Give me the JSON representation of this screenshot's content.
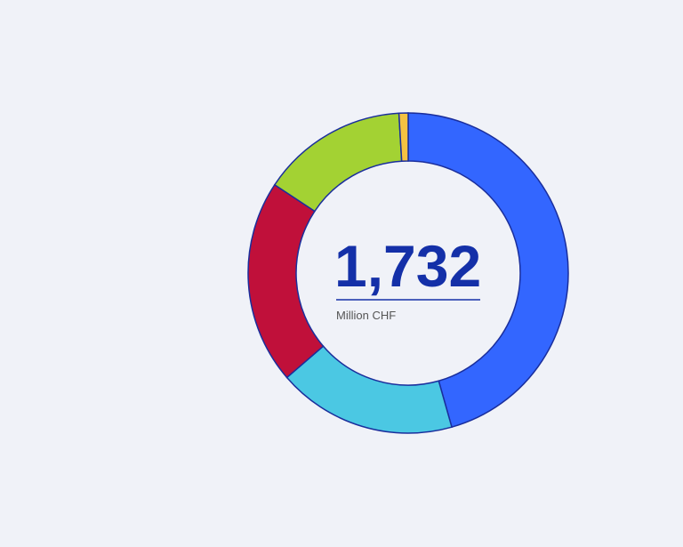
{
  "chart_data": {
    "type": "donut",
    "center_value": "1,732",
    "center_label": "Million CHF",
    "values": [
      790,
      313,
      357,
      256,
      16
    ],
    "colors": [
      "#3366ff",
      "#4bc8e3",
      "#c0103a",
      "#a3d233",
      "#f5c242"
    ]
  }
}
